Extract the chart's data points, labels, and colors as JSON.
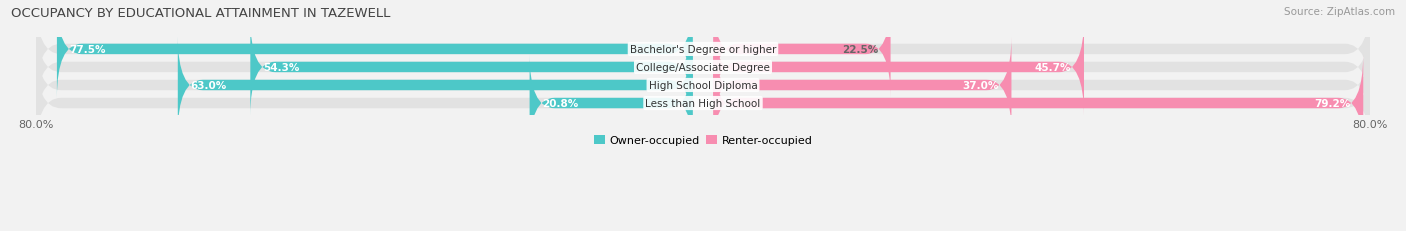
{
  "title": "OCCUPANCY BY EDUCATIONAL ATTAINMENT IN TAZEWELL",
  "source": "Source: ZipAtlas.com",
  "categories": [
    "Less than High School",
    "High School Diploma",
    "College/Associate Degree",
    "Bachelor's Degree or higher"
  ],
  "owner_values": [
    20.8,
    63.0,
    54.3,
    77.5
  ],
  "renter_values": [
    79.2,
    37.0,
    45.7,
    22.5
  ],
  "owner_color": "#4dc8c8",
  "renter_color": "#f78db0",
  "bg_color": "#f2f2f2",
  "bar_bg_color": "#e2e2e2",
  "xlim_left": -82,
  "xlim_right": 82,
  "x_left_label": "80.0%",
  "x_right_label": "80.0%",
  "legend_owner": "Owner-occupied",
  "legend_renter": "Renter-occupied",
  "title_fontsize": 9.5,
  "source_fontsize": 7.5,
  "label_fontsize": 7.5,
  "category_fontsize": 7.5
}
